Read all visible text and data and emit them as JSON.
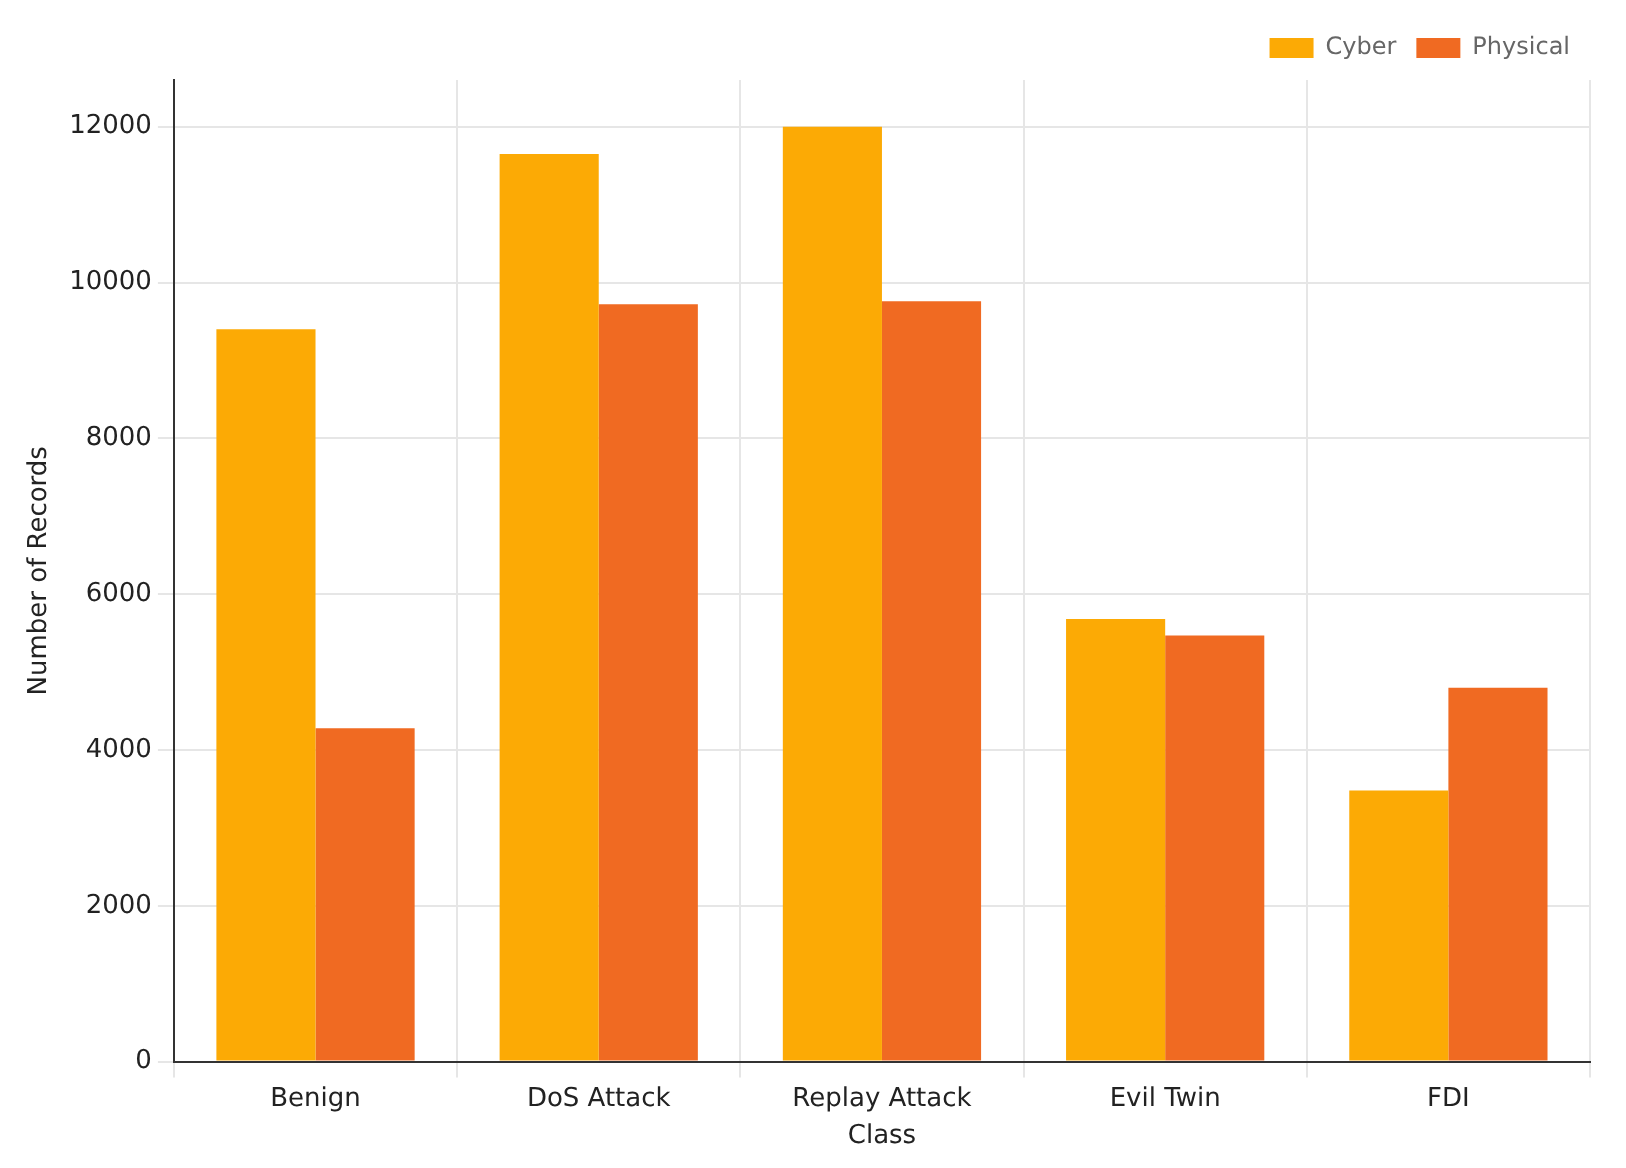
{
  "chart_data": {
    "type": "bar",
    "xlabel": "Class",
    "ylabel": "Number of Records",
    "categories": [
      "Benign",
      "DoS Attack",
      "Replay Attack",
      "Evil Twin",
      "FDI"
    ],
    "series": [
      {
        "name": "Cyber",
        "color": "#fcaa05",
        "values": [
          9400,
          11650,
          12000,
          5680,
          3480
        ]
      },
      {
        "name": "Physical",
        "color": "#f06a22",
        "values": [
          4280,
          9720,
          9760,
          5470,
          4800
        ]
      }
    ],
    "ylim": [
      0,
      12600
    ],
    "yticks": [
      0,
      2000,
      4000,
      6000,
      8000,
      10000,
      12000
    ],
    "grid": true,
    "legend": "top right"
  }
}
